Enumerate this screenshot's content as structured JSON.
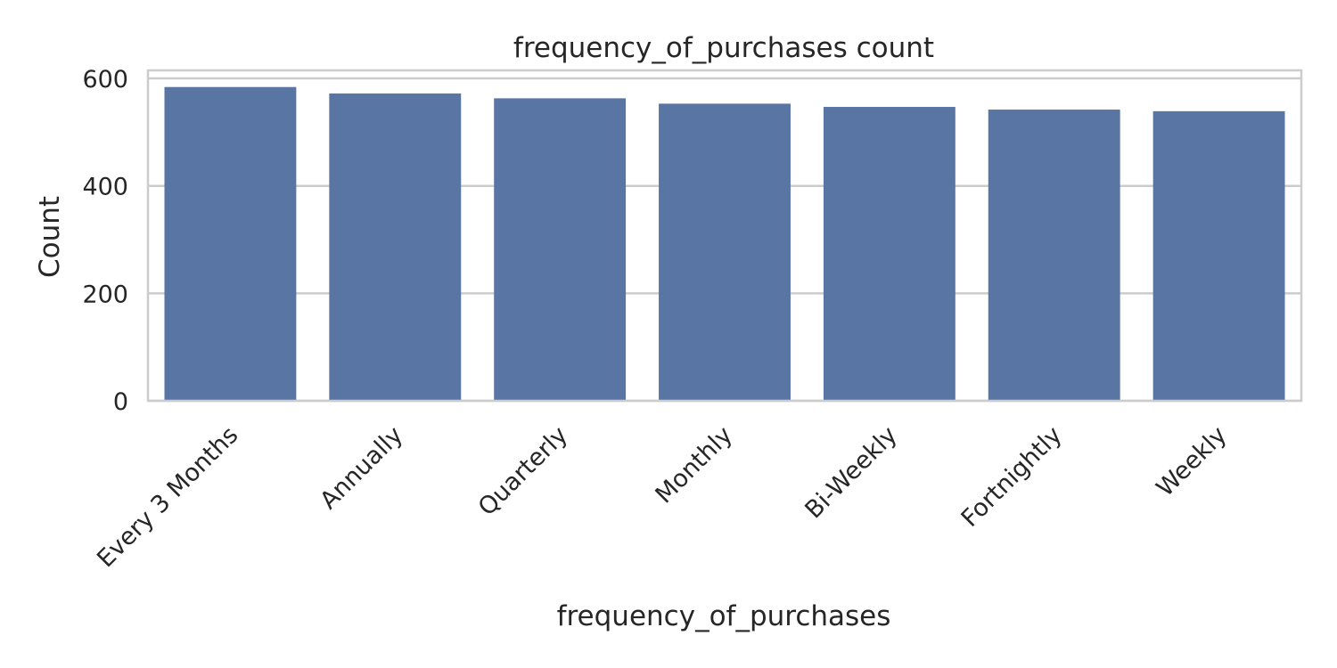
{
  "chart_data": {
    "type": "bar",
    "title": "frequency_of_purchases count",
    "xlabel": "frequency_of_purchases",
    "ylabel": "Count",
    "categories": [
      "Every 3 Months",
      "Annually",
      "Quarterly",
      "Monthly",
      "Bi-Weekly",
      "Fortnightly",
      "Weekly"
    ],
    "values": [
      584,
      572,
      563,
      553,
      547,
      542,
      539
    ],
    "yticks": [
      0,
      200,
      400,
      600
    ],
    "ylim": [
      0,
      615
    ],
    "grid": "horizontal",
    "bar_color": "#5975a4",
    "grid_color": "#cccccc"
  }
}
